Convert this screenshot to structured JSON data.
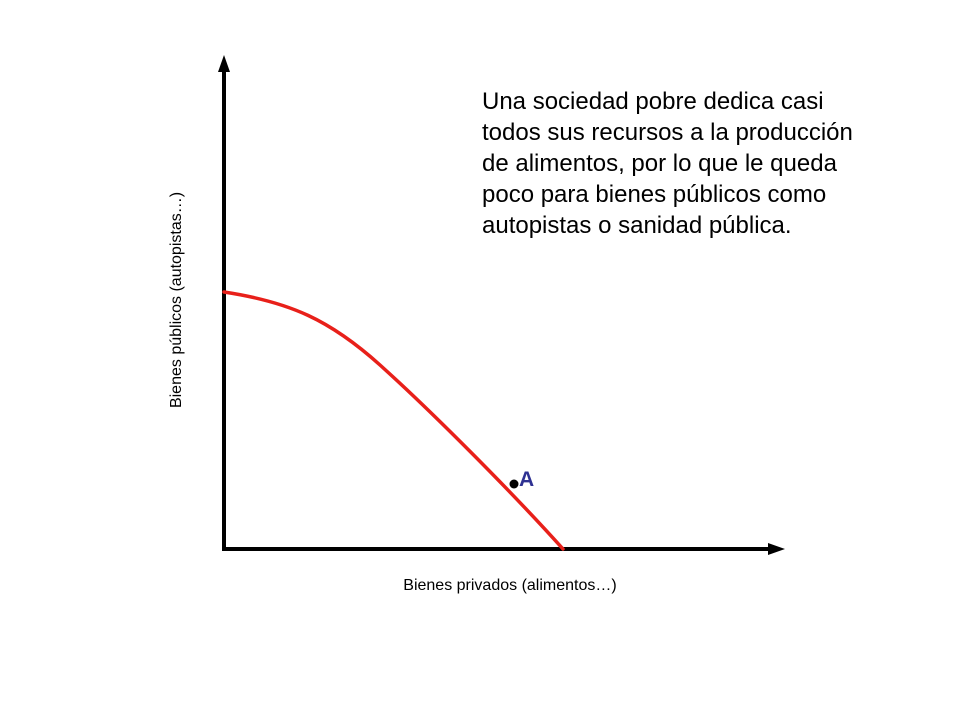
{
  "diagram": {
    "type": "production-possibilities-frontier",
    "x_axis_label": "Bienes privados (alimentos…)",
    "y_axis_label": "Bienes públicos (autopistas…)",
    "point_label": "A",
    "annotation_lines": [
      "Una sociedad pobre dedica casi",
      "todos sus recursos a la producción",
      "de alimentos, por lo que le queda",
      "poco para bienes públicos como",
      "autopistas o sanidad pública."
    ]
  },
  "colors": {
    "curve": "#e8201a",
    "point_label": "#2e3192",
    "axes": "#000000"
  }
}
